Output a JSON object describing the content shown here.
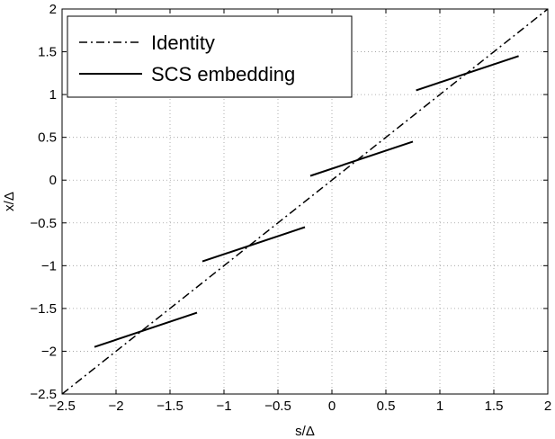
{
  "chart_data": {
    "type": "line",
    "xlabel": "s/Δ",
    "ylabel": "x/Δ",
    "xlim": [
      -2.5,
      2
    ],
    "ylim": [
      -2.5,
      2
    ],
    "xticks": [
      -2.5,
      -2,
      -1.5,
      -1,
      -0.5,
      0,
      0.5,
      1,
      1.5,
      2
    ],
    "yticks": [
      -2.5,
      -2,
      -1.5,
      -1,
      -0.5,
      0,
      0.5,
      1,
      1.5,
      2
    ],
    "xtick_labels": [
      "−2.5",
      "−2",
      "−1.5",
      "−1",
      "−0.5",
      "0",
      "0.5",
      "1",
      "1.5",
      "2"
    ],
    "ytick_labels": [
      "−2.5",
      "−2",
      "−1.5",
      "−1",
      "−0.5",
      "0",
      "0.5",
      "1",
      "1.5",
      "2"
    ],
    "grid": true,
    "legend_position": "top-left",
    "series": [
      {
        "name": "Identity",
        "style": "dash-dot",
        "color": "#000000",
        "segments": [
          {
            "x": [
              -2.5,
              2
            ],
            "y": [
              -2.5,
              2
            ]
          }
        ]
      },
      {
        "name": "SCS embedding",
        "style": "solid",
        "color": "#000000",
        "segments": [
          {
            "x": [
              -2.2,
              -1.25
            ],
            "y": [
              -1.95,
              -1.55
            ]
          },
          {
            "x": [
              -1.2,
              -0.25
            ],
            "y": [
              -0.95,
              -0.55
            ]
          },
          {
            "x": [
              -0.2,
              0.75
            ],
            "y": [
              0.05,
              0.45
            ]
          },
          {
            "x": [
              0.78,
              1.73
            ],
            "y": [
              1.05,
              1.45
            ]
          }
        ]
      }
    ]
  }
}
